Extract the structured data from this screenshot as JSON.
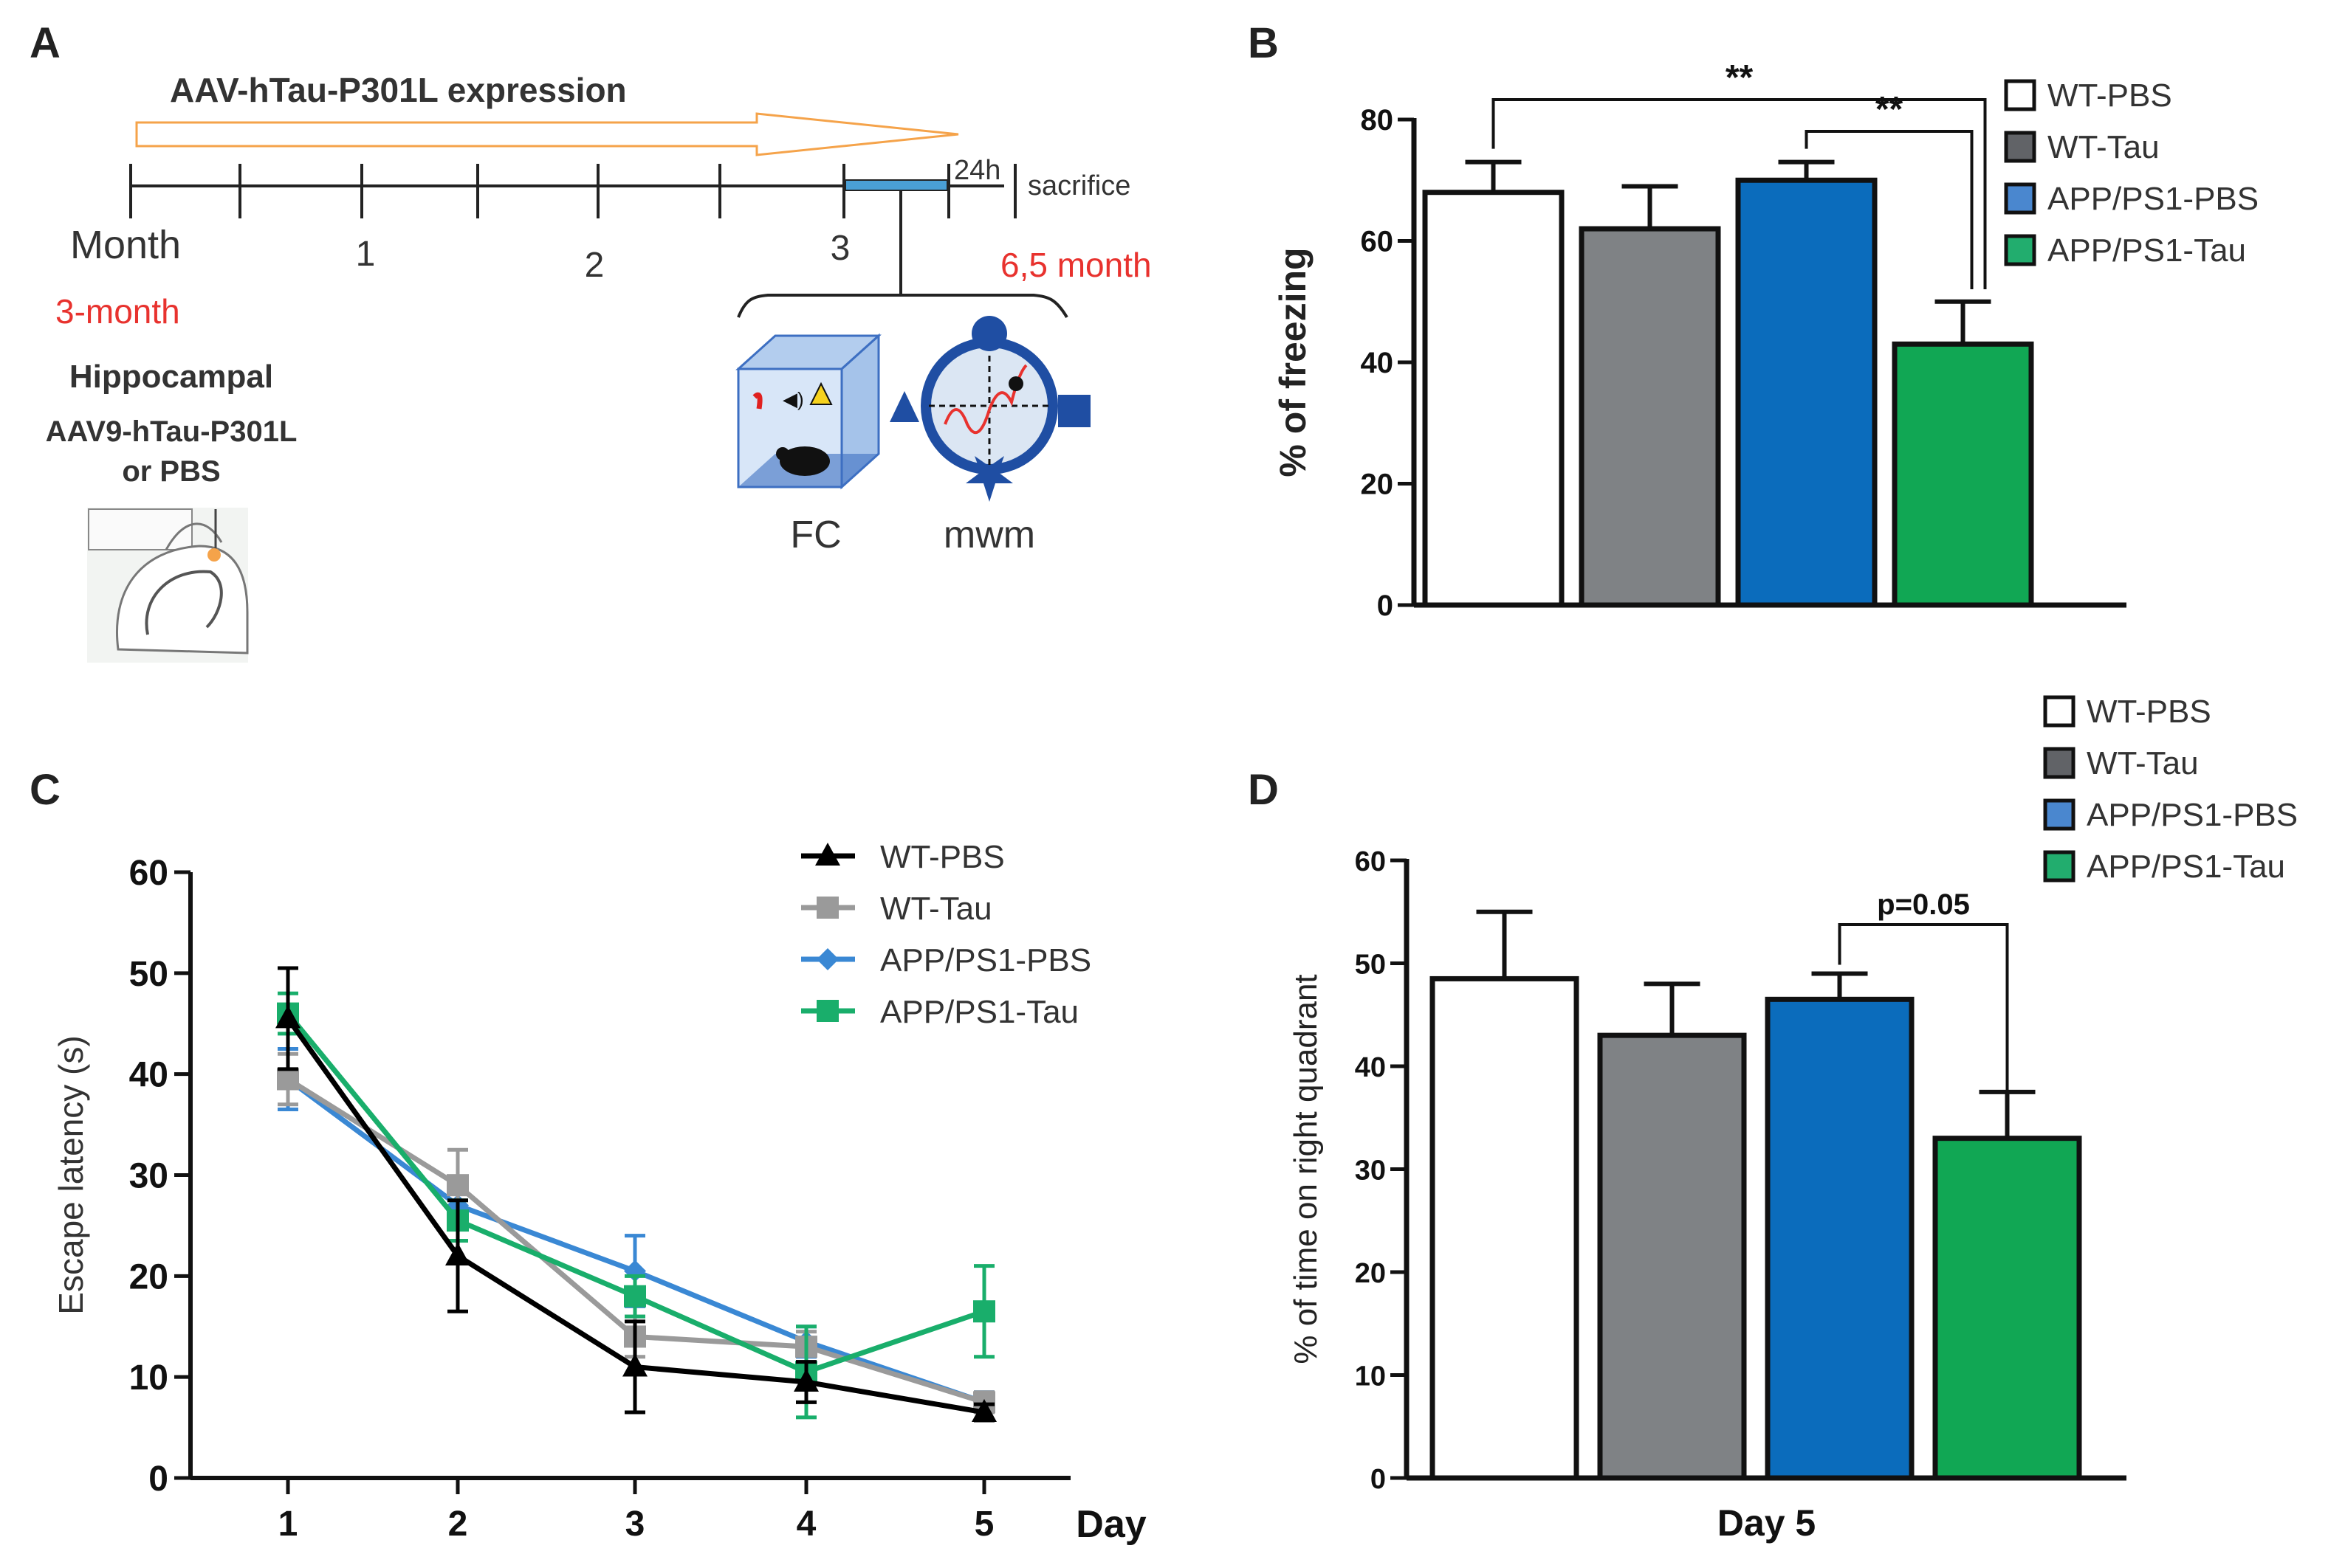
{
  "panelA": {
    "letter": "A",
    "arrow_label": "AAV-hTau-P301L expression",
    "month_label": "Month",
    "ticks": [
      "1",
      "2",
      "3"
    ],
    "h24": "24h",
    "sacrifice": "sacrifice",
    "start_age": "3-month",
    "end_age": "6,5 month",
    "inj_line1": "Hippocampal",
    "inj_line2": "AAV9-hTau-P301L",
    "inj_line3": "or PBS",
    "fc_label": "FC",
    "mwm_label": "mwm",
    "colors": {
      "arrow": "#f5a34a",
      "red_text": "#e8322e",
      "test_bar": "#4a9fd5",
      "box": "#6a9fd8",
      "pool": "#1f4ea3"
    }
  },
  "chart_data": [
    {
      "panel": "B",
      "type": "bar",
      "title": "",
      "ylabel": "% of freezing",
      "xlabel": "",
      "ylim": [
        0,
        80
      ],
      "yticks": [
        "0",
        "20",
        "40",
        "60",
        "80"
      ],
      "categories": [
        "WT-PBS",
        "WT-Tau",
        "APP/PS1-PBS",
        "APP/PS1-Tau"
      ],
      "values": [
        68,
        62,
        70,
        43
      ],
      "errors": [
        5,
        7,
        3,
        7
      ],
      "colors": [
        "#ffffff",
        "#7f8285",
        "#0b6cbc",
        "#11a754"
      ],
      "legend": [
        "WT-PBS",
        "WT-Tau",
        "APP/PS1-PBS",
        "APP/PS1-Tau"
      ],
      "legend_colors": [
        "#ffffff",
        "#616367",
        "#4a87cf",
        "#22ad6e"
      ],
      "annotations": [
        {
          "from": 0,
          "to": 3,
          "text": "**"
        },
        {
          "from": 2,
          "to": 3,
          "text": "**"
        }
      ]
    },
    {
      "panel": "C",
      "type": "line",
      "title": "",
      "xlabel": "Day",
      "ylabel": "Escape latency (s)",
      "x": [
        "1",
        "2",
        "3",
        "4",
        "5"
      ],
      "ylim": [
        0,
        60
      ],
      "yticks": [
        "0",
        "10",
        "20",
        "30",
        "40",
        "50",
        "60"
      ],
      "series": [
        {
          "name": "WT-PBS",
          "color": "#000000",
          "marker": "triangle",
          "values": [
            45.5,
            22,
            11,
            9.5,
            6.5
          ],
          "errors": [
            5,
            5.5,
            4.5,
            2,
            0.8
          ]
        },
        {
          "name": "WT-Tau",
          "color": "#9a9a9a",
          "marker": "square",
          "values": [
            39.5,
            29,
            14,
            13,
            7.5
          ],
          "errors": [
            2.5,
            3.5,
            2,
            1.5,
            1
          ]
        },
        {
          "name": "APP/PS1-PBS",
          "color": "#3a88d4",
          "marker": "diamond",
          "values": [
            39.5,
            27,
            20.5,
            13.5,
            7.5
          ],
          "errors": [
            3,
            2,
            3.5,
            1.5,
            1
          ]
        },
        {
          "name": "APP/PS1-Tau",
          "color": "#19ae6b",
          "marker": "square",
          "values": [
            46,
            25.5,
            18,
            10.5,
            16.5
          ],
          "errors": [
            2,
            2,
            2,
            4.5,
            4.5
          ]
        }
      ]
    },
    {
      "panel": "D",
      "type": "bar",
      "title": "",
      "xlabel": "Day 5",
      "ylabel": "% of time on right quadrant",
      "ylim": [
        0,
        60
      ],
      "yticks": [
        "0",
        "10",
        "20",
        "30",
        "40",
        "50",
        "60"
      ],
      "categories": [
        "WT-PBS",
        "WT-Tau",
        "APP/PS1-PBS",
        "APP/PS1-Tau"
      ],
      "values": [
        48.5,
        43,
        46.5,
        33
      ],
      "errors": [
        6.5,
        5,
        2.5,
        4.5
      ],
      "colors": [
        "#ffffff",
        "#7f8285",
        "#0b6cbc",
        "#11a754"
      ],
      "legend": [
        "WT-PBS",
        "WT-Tau",
        "APP/PS1-PBS",
        "APP/PS1-Tau"
      ],
      "legend_colors": [
        "#ffffff",
        "#616367",
        "#4a87cf",
        "#22ad6e"
      ],
      "annotations": [
        {
          "from": 2,
          "to": 3,
          "text": "p=0.05"
        }
      ]
    }
  ]
}
